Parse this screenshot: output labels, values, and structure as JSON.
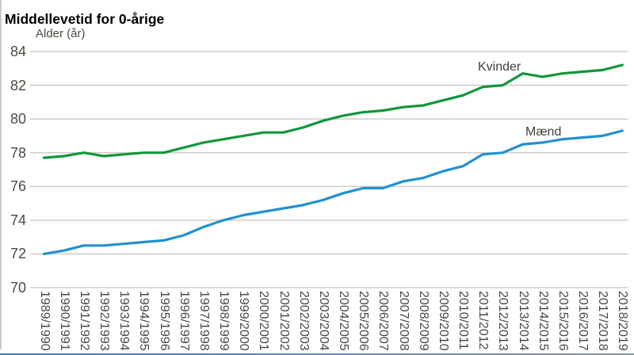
{
  "title": "Middellevetid for 0-årige",
  "colors": {
    "grid": "#c9c5bd",
    "tick_text": "#4e4940",
    "title_text": "#000000",
    "series_kvinder": "#12963a",
    "series_maend": "#2190d0"
  },
  "chart_data": {
    "type": "line",
    "title": "Middellevetid for 0-årige",
    "y_axis_label": "Alder (år)",
    "ylim": [
      70,
      84
    ],
    "y_ticks": [
      84,
      82,
      80,
      78,
      76,
      74,
      72,
      70
    ],
    "grid": "horizontal",
    "legend": "inline-labels-near-lines",
    "categories": [
      "1989/1990",
      "1990/1991",
      "1991/1992",
      "1992/1993",
      "1993/1994",
      "1994/1995",
      "1995/1996",
      "1996/1997",
      "1997/1998",
      "1998/1999",
      "1999/2000",
      "2000/2001",
      "2001/2002",
      "2002/2003",
      "2003/2004",
      "2004/2005",
      "2005/2006",
      "2006/2007",
      "2007/2008",
      "2008/2009",
      "2009/2010",
      "2010/2011",
      "2011/2012",
      "2012/2013",
      "2013/2014",
      "2014/2015",
      "2015/2016",
      "2016/2017",
      "2017/2018",
      "2018/2019"
    ],
    "series": [
      {
        "name": "Kvinder",
        "color": "#12963a",
        "values": [
          77.7,
          77.8,
          78.0,
          77.8,
          77.9,
          78.0,
          78.0,
          78.3,
          78.6,
          78.8,
          79.0,
          79.2,
          79.2,
          79.5,
          79.9,
          80.2,
          80.4,
          80.5,
          80.7,
          80.8,
          81.1,
          81.4,
          81.9,
          82.0,
          82.7,
          82.5,
          82.7,
          82.8,
          82.9,
          83.2
        ]
      },
      {
        "name": "Mænd",
        "color": "#2190d0",
        "values": [
          72.0,
          72.2,
          72.5,
          72.5,
          72.6,
          72.7,
          72.8,
          73.1,
          73.6,
          74.0,
          74.3,
          74.5,
          74.7,
          74.9,
          75.2,
          75.6,
          75.9,
          75.9,
          76.3,
          76.5,
          76.9,
          77.2,
          77.9,
          78.0,
          78.5,
          78.6,
          78.8,
          78.9,
          79.0,
          79.3
        ]
      }
    ]
  }
}
